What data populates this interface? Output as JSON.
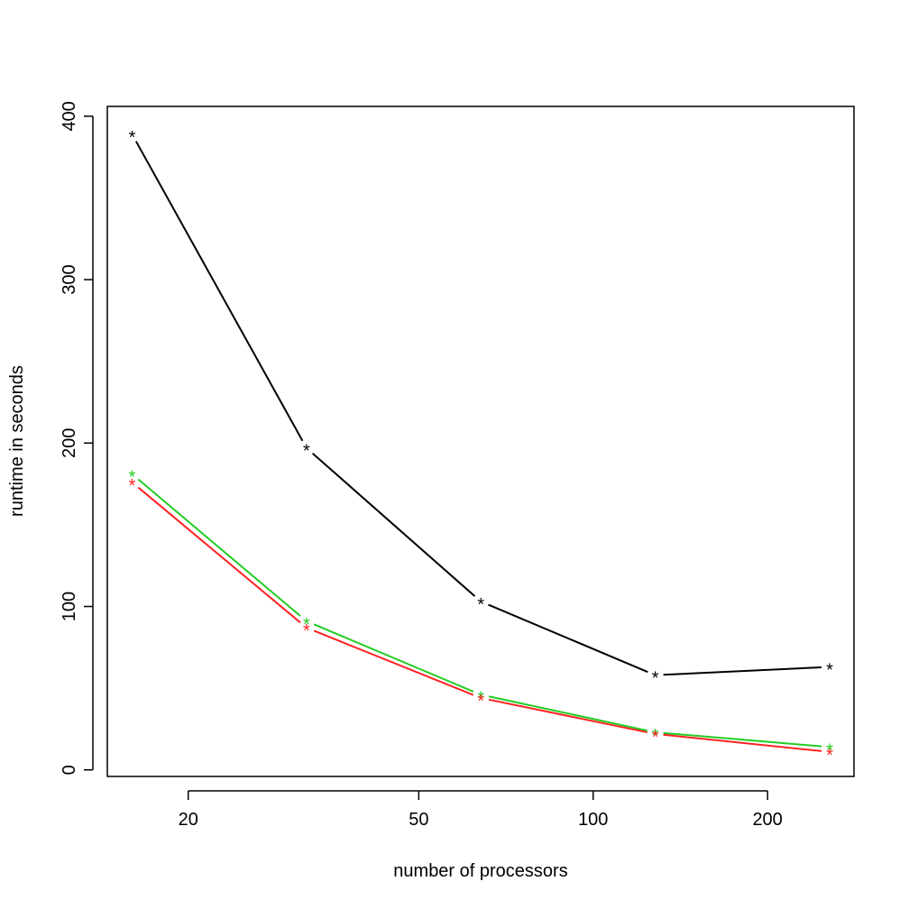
{
  "chart_data": {
    "type": "line",
    "title": "",
    "xlabel": "number of processors",
    "ylabel": "runtime in seconds",
    "x_scale": "log",
    "x": [
      16,
      32,
      64,
      128,
      256
    ],
    "x_ticks": [
      20,
      50,
      100,
      200
    ],
    "x_tick_labels": [
      "20",
      "50",
      "100",
      "200"
    ],
    "y_ticks": [
      0,
      100,
      200,
      300,
      400
    ],
    "y_tick_labels": [
      "0",
      "100",
      "200",
      "300",
      "400"
    ],
    "xlim": [
      14.5,
      282
    ],
    "ylim": [
      -4,
      406
    ],
    "grid": false,
    "marker": "*",
    "series": [
      {
        "color": "#000000",
        "values": [
          389,
          197,
          103,
          58,
          63
        ]
      },
      {
        "color": "#22cc22",
        "values": [
          181,
          91,
          46,
          23,
          14
        ]
      },
      {
        "color": "#ff2222",
        "values": [
          176,
          87,
          44,
          22,
          11
        ]
      }
    ]
  }
}
